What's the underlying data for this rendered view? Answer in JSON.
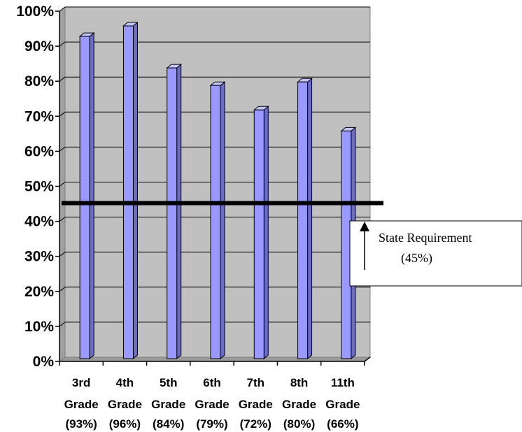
{
  "chart_data": {
    "type": "bar",
    "title": "",
    "xlabel": "",
    "ylabel": "",
    "ylim": [
      0,
      100
    ],
    "y_ticks": [
      "0%",
      "10%",
      "20%",
      "30%",
      "40%",
      "50%",
      "60%",
      "70%",
      "80%",
      "90%",
      "100%"
    ],
    "grid": true,
    "categories": [
      {
        "line1": "3rd",
        "line2": "Grade",
        "line3": "(93%)"
      },
      {
        "line1": "4th",
        "line2": "Grade",
        "line3": "(96%)"
      },
      {
        "line1": "5th",
        "line2": "Grade",
        "line3": "(84%)"
      },
      {
        "line1": "6th",
        "line2": "Grade",
        "line3": "(79%)"
      },
      {
        "line1": "7th",
        "line2": "Grade",
        "line3": "(72%)"
      },
      {
        "line1": "8th",
        "line2": "Grade",
        "line3": "(80%)"
      },
      {
        "line1": "11th",
        "line2": "Grade",
        "line3": "(66%)"
      }
    ],
    "values": [
      93,
      96,
      84,
      79,
      72,
      80,
      66
    ],
    "reference_line": {
      "value": 45,
      "label_line1": "State Requirement",
      "label_line2": "(45%)"
    },
    "colors": {
      "bar_front": "#9999ff",
      "bar_side": "#6b6bc8",
      "bar_top": "#c4c4ff",
      "plot_back": "#c0c0c0",
      "reference": "#000000"
    }
  }
}
